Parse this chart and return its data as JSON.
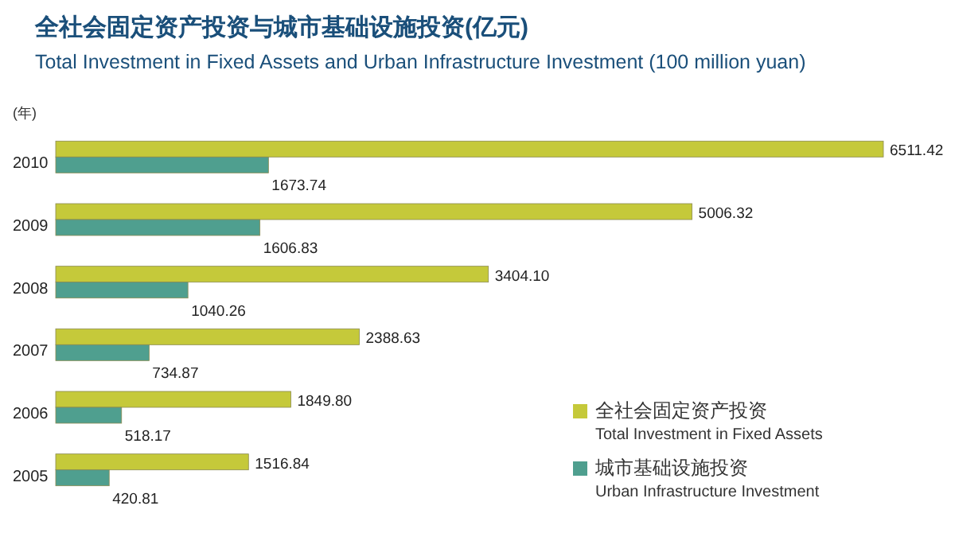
{
  "chart_data": {
    "type": "bar",
    "orientation": "horizontal",
    "title": "全社会固定资产投资与城市基础设施投资(亿元)",
    "subtitle": "Total Investment in Fixed Assets and Urban Infrastructure Investment (100 million yuan)",
    "ylabel": "(年)",
    "categories": [
      "2010",
      "2009",
      "2008",
      "2007",
      "2006",
      "2005"
    ],
    "series": [
      {
        "name": "全社会固定资产投资\nTotal Investment in Fixed Assets",
        "color": "#c5c93a",
        "values": [
          6511.42,
          5006.32,
          3404.1,
          2388.63,
          1849.8,
          1516.84
        ],
        "value_labels": [
          "6511.42",
          "5006.32",
          "3404.10",
          "2388.63",
          "1849.80",
          "1516.84"
        ]
      },
      {
        "name": "城市基础设施投资\nUrban Infrastructure Investment",
        "color": "#4f9f8f",
        "values": [
          1673.74,
          1606.83,
          1040.26,
          734.87,
          518.17,
          420.81
        ],
        "value_labels": [
          "1673.74",
          "1606.83",
          "1040.26",
          "734.87",
          "518.17",
          "420.81"
        ]
      }
    ],
    "legend": "bottom right"
  }
}
